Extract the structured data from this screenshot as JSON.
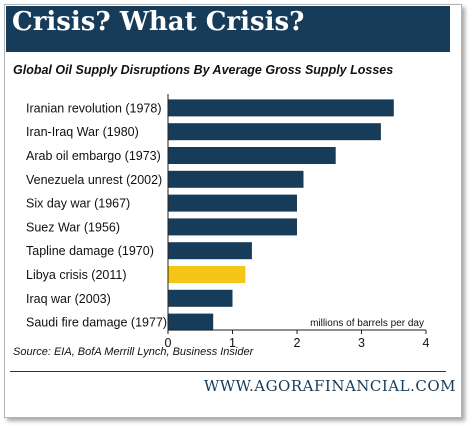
{
  "header": {
    "title": "Crisis? What Crisis?"
  },
  "footer": {
    "source": "Source: EIA, BofA Merrill Lynch, Business Insider",
    "website": "WWW.AGORAFINANCIAL.COM"
  },
  "colors": {
    "bar": "#173c5a",
    "highlight": "#f5c518",
    "header_bg": "#173c5a"
  },
  "chart_data": {
    "type": "bar",
    "orientation": "horizontal",
    "title": "Global Oil Supply Disruptions By Average Gross Supply Losses",
    "xlabel": "millions of barrels per day",
    "ylabel": "",
    "xlim": [
      0,
      4
    ],
    "x_ticks": [
      "0",
      "1",
      "2",
      "3",
      "4"
    ],
    "grid": false,
    "categories": [
      "Iranian revolution (1978)",
      "Iran-Iraq War (1980)",
      "Arab oil embargo (1973)",
      "Venezuela unrest (2002)",
      "Six day war (1967)",
      "Suez War (1956)",
      "Tapline damage (1970)",
      "Libya crisis (2011)",
      "Iraq war (2003)",
      "Saudi fire damage (1977)"
    ],
    "values": [
      3.5,
      3.3,
      2.6,
      2.1,
      2.0,
      2.0,
      1.3,
      1.2,
      1.0,
      0.7
    ],
    "highlight": "Libya crisis (2011)"
  }
}
